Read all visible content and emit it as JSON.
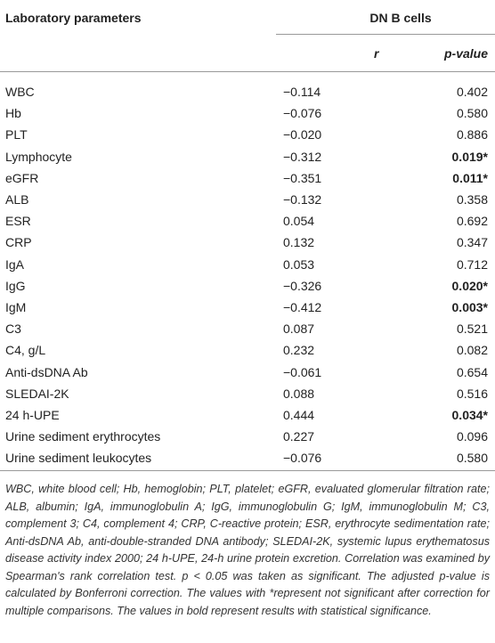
{
  "table": {
    "header": {
      "parameter": "Laboratory parameters",
      "group": "DN B cells",
      "r": "r",
      "p": "p-value"
    },
    "rows": [
      {
        "name": "WBC",
        "r": "−0.114",
        "p": "0.402",
        "bold": false
      },
      {
        "name": "Hb",
        "r": "−0.076",
        "p": "0.580",
        "bold": false
      },
      {
        "name": "PLT",
        "r": "−0.020",
        "p": "0.886",
        "bold": false
      },
      {
        "name": "Lymphocyte",
        "r": "−0.312",
        "p": "0.019*",
        "bold": true
      },
      {
        "name": "eGFR",
        "r": "−0.351",
        "p": "0.011*",
        "bold": true
      },
      {
        "name": "ALB",
        "r": "−0.132",
        "p": "0.358",
        "bold": false
      },
      {
        "name": "ESR",
        "r": "0.054",
        "p": "0.692",
        "bold": false
      },
      {
        "name": "CRP",
        "r": "0.132",
        "p": "0.347",
        "bold": false
      },
      {
        "name": "IgA",
        "r": "0.053",
        "p": "0.712",
        "bold": false
      },
      {
        "name": "IgG",
        "r": "−0.326",
        "p": "0.020*",
        "bold": true
      },
      {
        "name": "IgM",
        "r": "−0.412",
        "p": "0.003*",
        "bold": true
      },
      {
        "name": "C3",
        "r": "0.087",
        "p": "0.521",
        "bold": false
      },
      {
        "name": "C4, g/L",
        "r": "0.232",
        "p": "0.082",
        "bold": false
      },
      {
        "name": "Anti-dsDNA Ab",
        "r": "−0.061",
        "p": "0.654",
        "bold": false
      },
      {
        "name": "SLEDAI-2K",
        "r": "0.088",
        "p": "0.516",
        "bold": false
      },
      {
        "name": "24 h-UPE",
        "r": "0.444",
        "p": "0.034*",
        "bold": true
      },
      {
        "name": "Urine sediment erythrocytes",
        "r": "0.227",
        "p": "0.096",
        "bold": false
      },
      {
        "name": "Urine sediment leukocytes",
        "r": "−0.076",
        "p": "0.580",
        "bold": false
      }
    ],
    "footnote": "WBC, white blood cell; Hb, hemoglobin; PLT, platelet; eGFR, evaluated glomerular filtration rate; ALB, albumin; IgA, immunoglobulin A; IgG, immunoglobulin G; IgM, immunoglobulin M; C3, complement 3; C4, complement 4; CRP, C-reactive protein; ESR, erythrocyte sedimentation rate; Anti-dsDNA Ab, anti-double-stranded DNA antibody; SLEDAI-2K, systemic lupus erythematosus disease activity index 2000; 24 h-UPE, 24-h urine protein excretion. Correlation was examined by Spearman's rank correlation test. p < 0.05 was taken as significant. The adjusted p-value is calculated by Bonferroni correction. The values with *represent not significant after correction for multiple comparisons. The values in bold represent results with statistical significance."
  }
}
